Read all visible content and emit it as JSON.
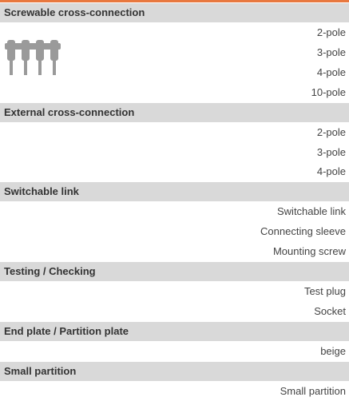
{
  "sections": [
    {
      "title": "Screwable cross-connection",
      "items": [
        "2-pole",
        "3-pole",
        "4-pole",
        "10-pole"
      ]
    },
    {
      "title": "External cross-connection",
      "items": [
        "2-pole",
        "3-pole",
        "4-pole"
      ]
    },
    {
      "title": "Switchable link",
      "items": [
        "Switchable link",
        "Connecting sleeve",
        "Mounting screw"
      ]
    },
    {
      "title": "Testing / Checking",
      "items": [
        "Test plug",
        "Socket"
      ]
    },
    {
      "title": "End plate / Partition plate",
      "items": [
        "beige"
      ]
    },
    {
      "title": "Small partition",
      "items": [
        "Small partition"
      ]
    }
  ]
}
